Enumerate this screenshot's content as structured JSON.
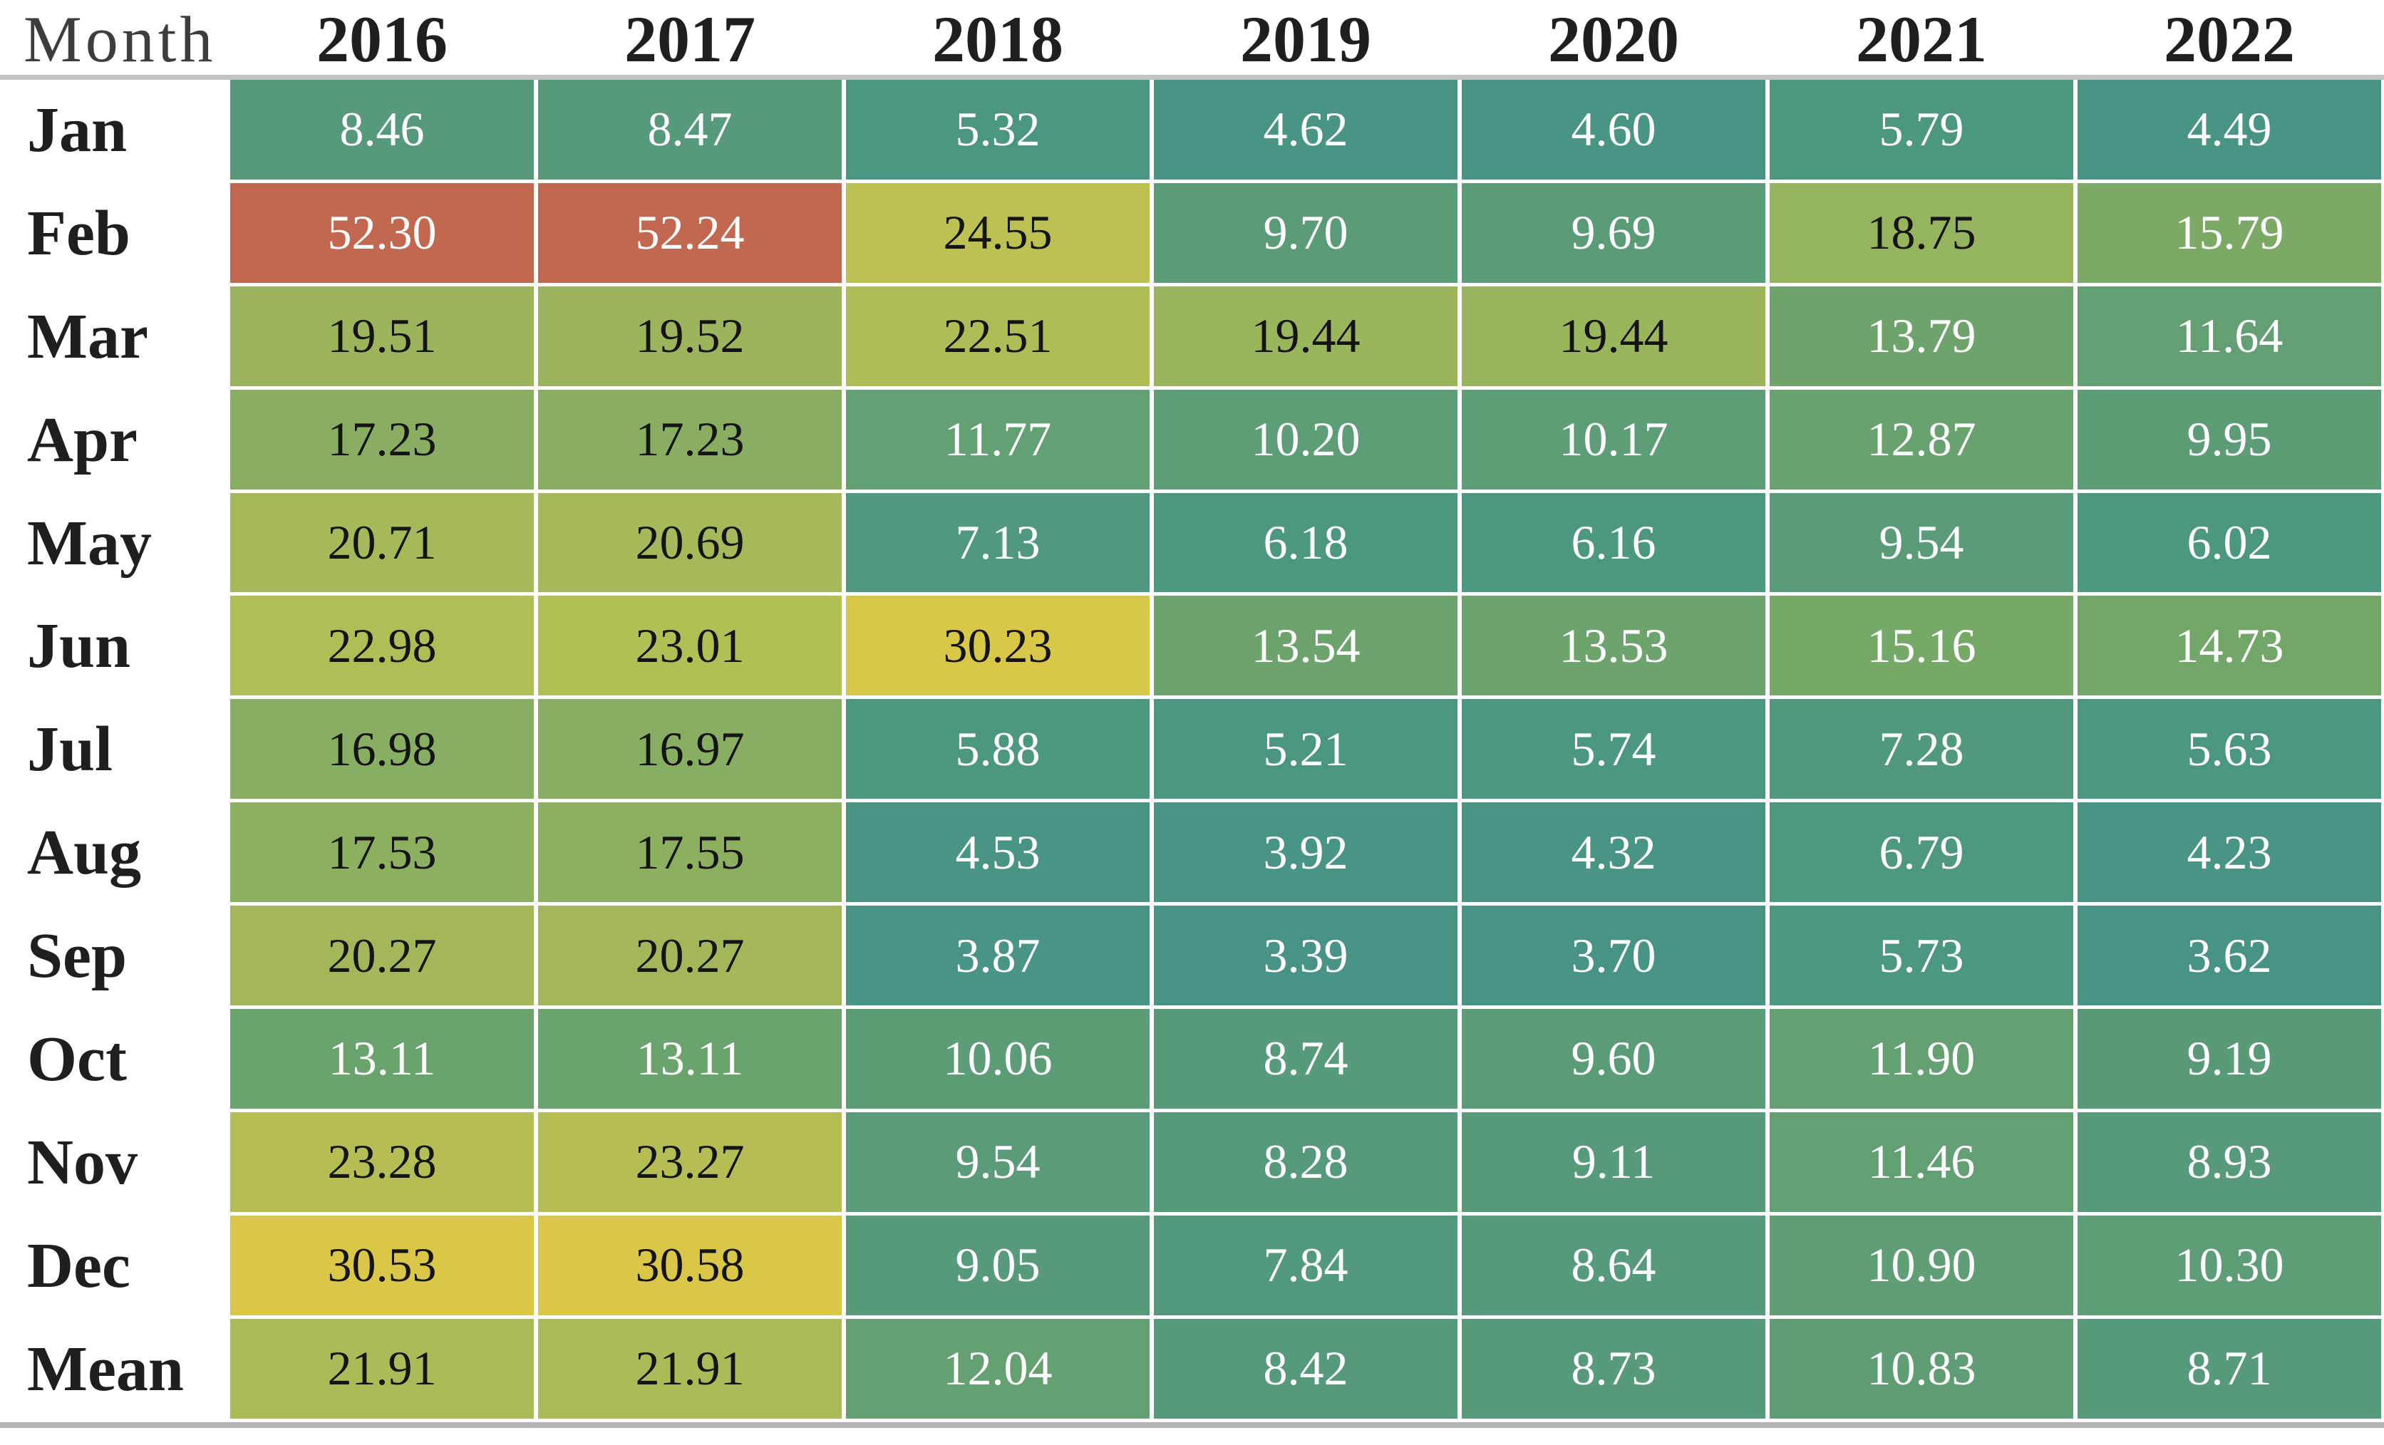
{
  "chart_data": {
    "type": "heatmap",
    "title": "",
    "columns": [
      "Month",
      "2016",
      "2017",
      "2018",
      "2019",
      "2020",
      "2021",
      "2022"
    ],
    "row_labels": [
      "Jan",
      "Feb",
      "Mar",
      "Apr",
      "May",
      "Jun",
      "Jul",
      "Aug",
      "Sep",
      "Oct",
      "Nov",
      "Dec",
      "Mean"
    ],
    "values": [
      [
        "8.46",
        "8.47",
        "5.32",
        "4.62",
        "4.60",
        "5.79",
        "4.49"
      ],
      [
        "52.30",
        "52.24",
        "24.55",
        "9.70",
        "9.69",
        "18.75",
        "15.79"
      ],
      [
        "19.51",
        "19.52",
        "22.51",
        "19.44",
        "19.44",
        "13.79",
        "11.64"
      ],
      [
        "17.23",
        "17.23",
        "11.77",
        "10.20",
        "10.17",
        "12.87",
        "9.95"
      ],
      [
        "20.71",
        "20.69",
        "7.13",
        "6.18",
        "6.16",
        "9.54",
        "6.02"
      ],
      [
        "22.98",
        "23.01",
        "30.23",
        "13.54",
        "13.53",
        "15.16",
        "14.73"
      ],
      [
        "16.98",
        "16.97",
        "5.88",
        "5.21",
        "5.74",
        "7.28",
        "5.63"
      ],
      [
        "17.53",
        "17.55",
        "4.53",
        "3.92",
        "4.32",
        "6.79",
        "4.23"
      ],
      [
        "20.27",
        "20.27",
        "3.87",
        "3.39",
        "3.70",
        "5.73",
        "3.62"
      ],
      [
        "13.11",
        "13.11",
        "10.06",
        "8.74",
        "9.60",
        "11.90",
        "9.19"
      ],
      [
        "23.28",
        "23.27",
        "9.54",
        "8.28",
        "9.11",
        "11.46",
        "8.93"
      ],
      [
        "30.53",
        "30.58",
        "9.05",
        "7.84",
        "8.64",
        "10.90",
        "10.30"
      ],
      [
        "21.91",
        "21.91",
        "12.04",
        "8.42",
        "8.73",
        "10.83",
        "8.71"
      ]
    ],
    "layout": {
      "legend": "none",
      "gridlines": "white gaps between cells",
      "value_range": [
        3.39,
        52.3
      ]
    },
    "colormap_stops": [
      [
        3.39,
        "#479486"
      ],
      [
        6.0,
        "#4B9780"
      ],
      [
        9.0,
        "#589B7A"
      ],
      [
        12.0,
        "#64A072"
      ],
      [
        15.0,
        "#75A768"
      ],
      [
        18.0,
        "#90B15F"
      ],
      [
        21.0,
        "#A7B959"
      ],
      [
        24.55,
        "#BCC151"
      ],
      [
        30.4,
        "#DAC847"
      ],
      [
        52.3,
        "#C26851"
      ]
    ],
    "dark_text_range": [
      16.5,
      31
    ],
    "colors": {
      "value_text_light": "#FFFFFF",
      "value_text_dark": "#141414",
      "header_month": "#3D3D3D",
      "header_year": "#1F1F1F",
      "row_label": "#1F1F1F",
      "divider_top": "#C3C3C3",
      "divider_bottom": "#B5B5B5",
      "background": "#FFFFFF"
    }
  }
}
